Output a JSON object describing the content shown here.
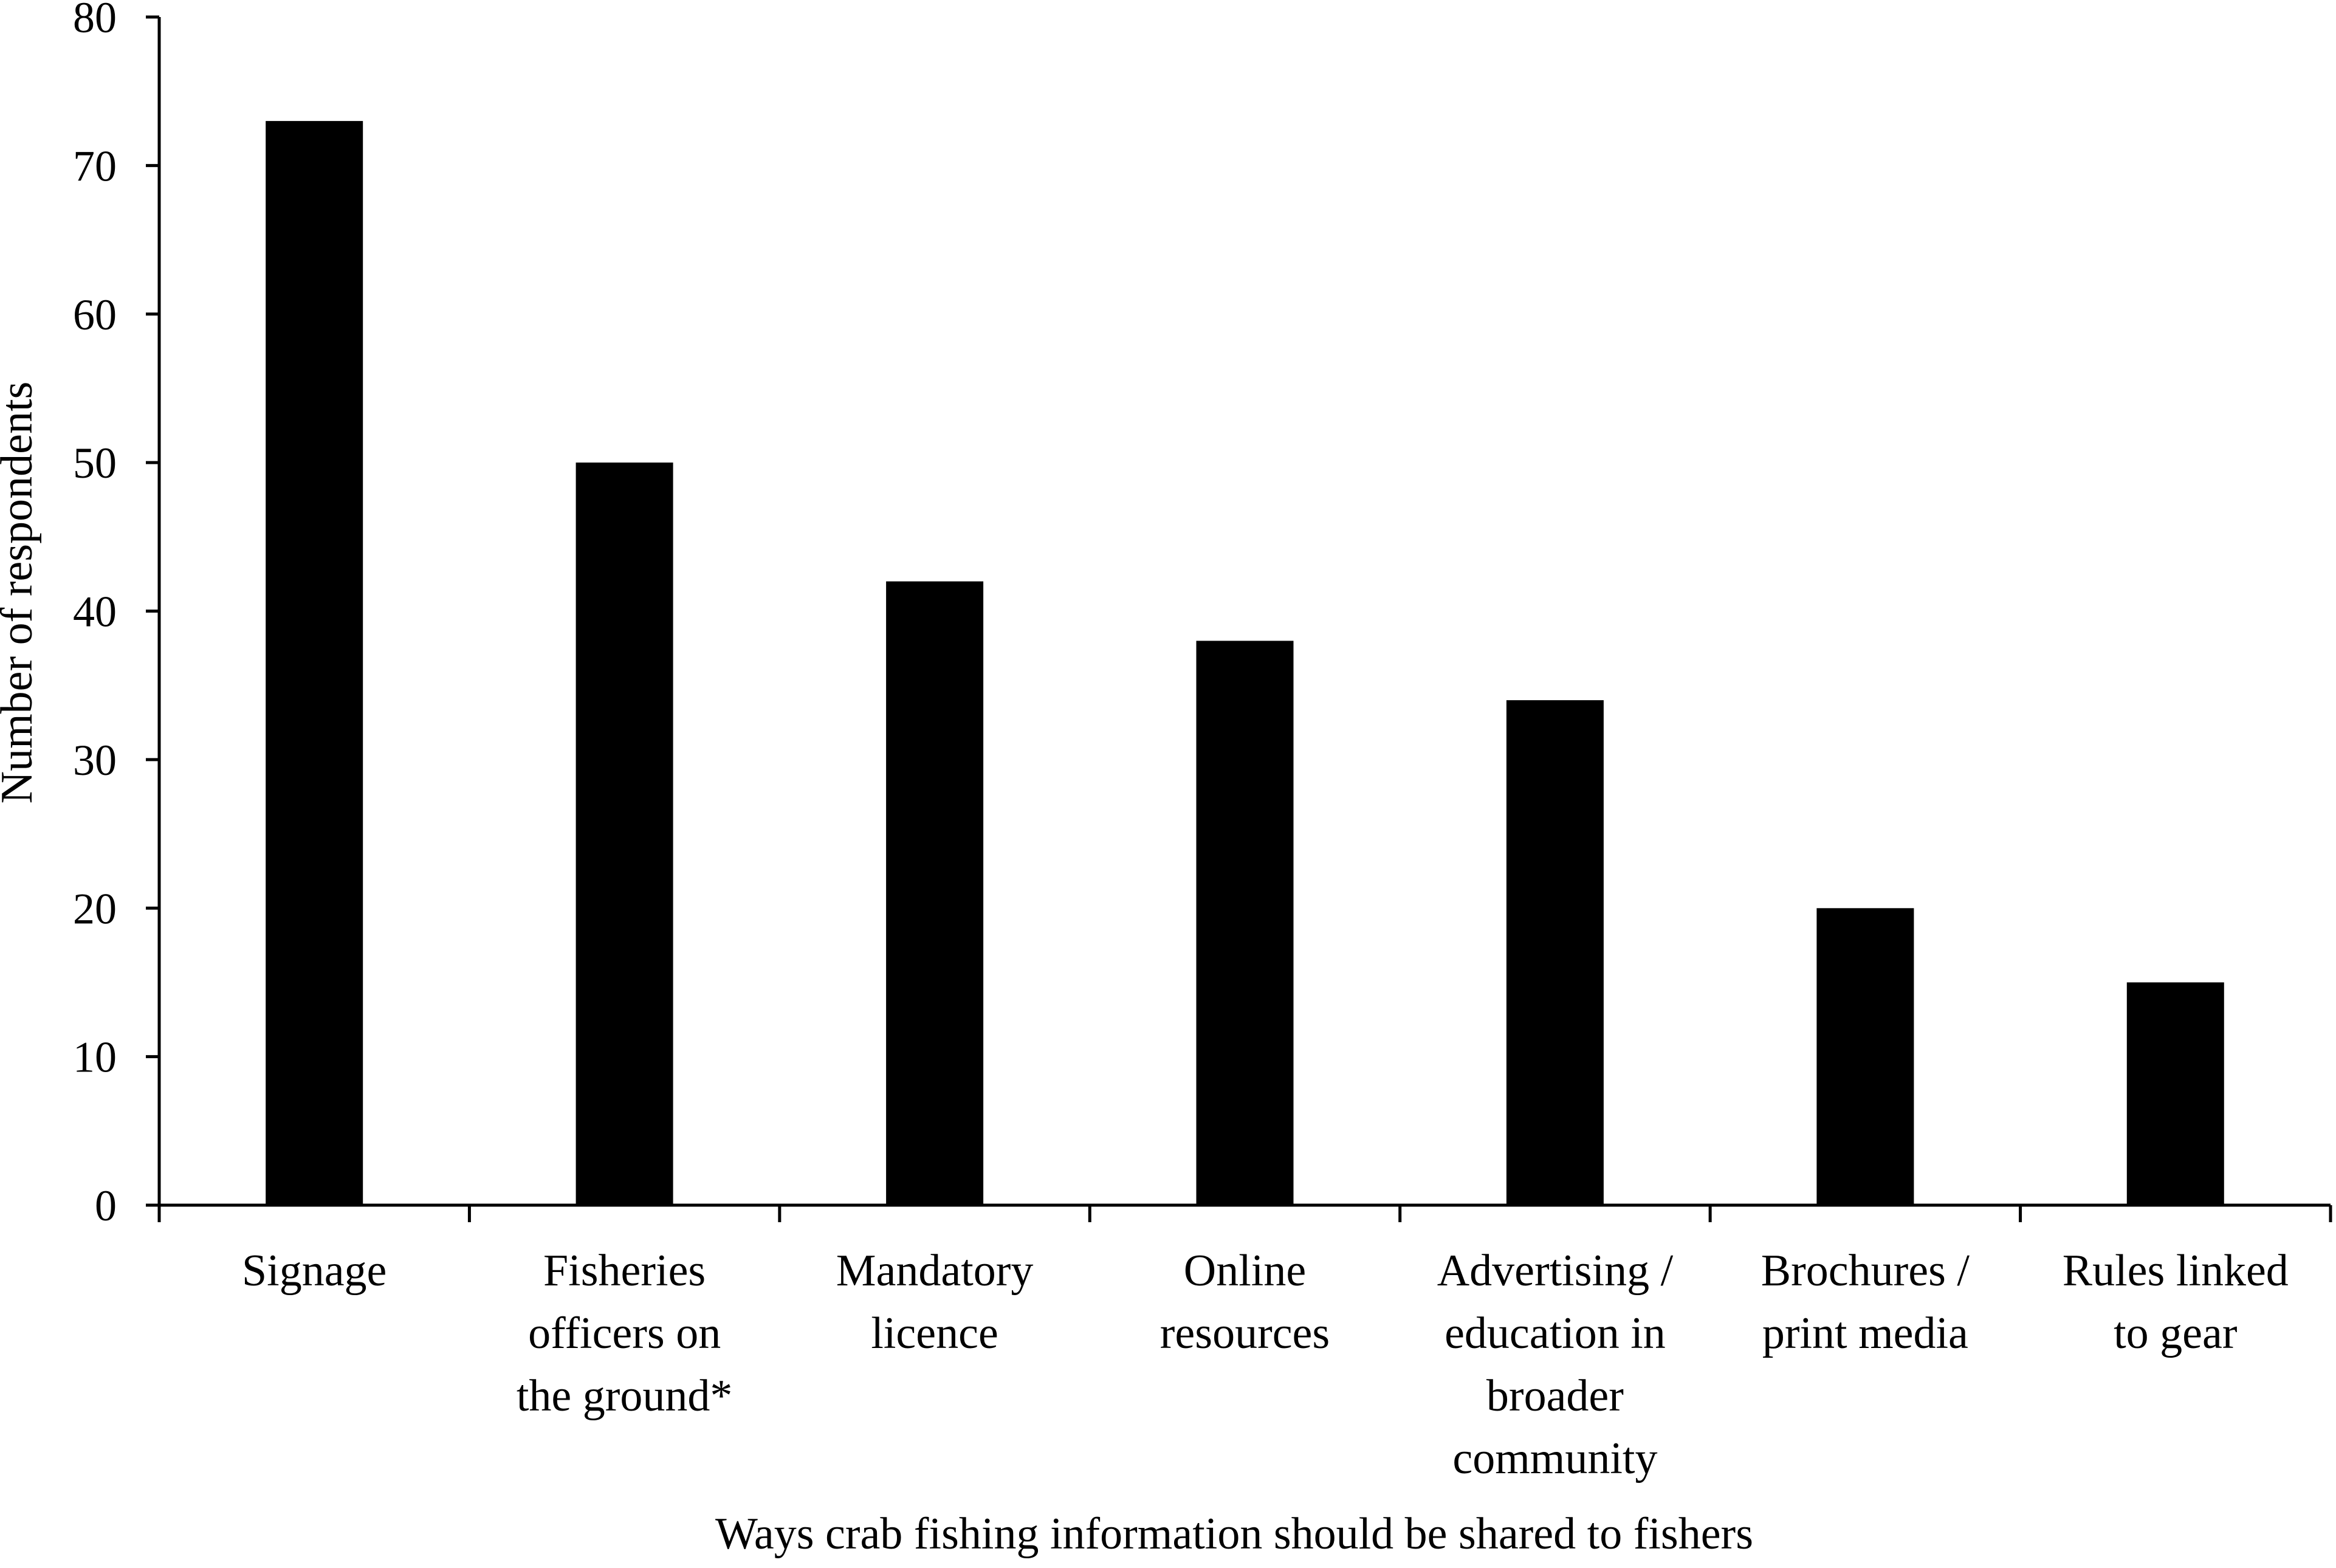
{
  "chart_data": {
    "type": "bar",
    "categories": [
      [
        "Signage"
      ],
      [
        "Fisheries",
        "officers on",
        "the ground*"
      ],
      [
        "Mandatory",
        "licence"
      ],
      [
        "Online",
        "resources"
      ],
      [
        "Advertising /",
        "education in",
        "broader",
        "community"
      ],
      [
        "Brochures /",
        "print media"
      ],
      [
        "Rules linked",
        "to gear"
      ]
    ],
    "values": [
      73,
      50,
      42,
      38,
      34,
      20,
      15
    ],
    "title": "",
    "xlabel": "Ways crab fishing information should be shared to fishers",
    "ylabel": "Number of respondents",
    "ylim": [
      0,
      80
    ],
    "yticks": [
      0,
      10,
      20,
      30,
      40,
      50,
      60,
      70,
      80
    ],
    "grid": false,
    "legend": "none",
    "bar_color": "#000000"
  }
}
